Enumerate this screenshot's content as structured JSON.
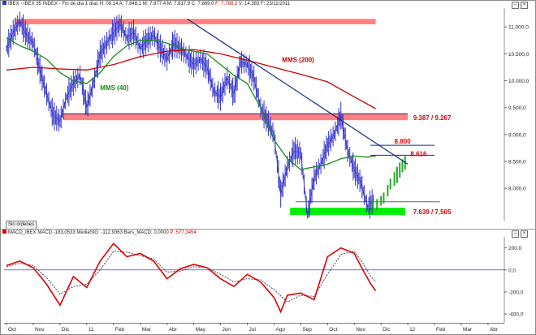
{
  "header": {
    "instrument": "IBEX - IBEX 35 INDEX - Fin de día 1 días",
    "ohlc": "H: 09.14  A: 7.848,1  M: 7.877,4  M: 7.817,9  C: 7.869,0",
    "change": "F: 7.798,2",
    "extra": "V: 14.383  F: 23/11/2011"
  },
  "macd_header": {
    "name": "MACD_IBEX MACD",
    "macd_value": "-183,0533",
    "signal": "MediaSIG: -112,9363",
    "zero": "Bars_MACD: 0,0000",
    "price": "P: 577,3454"
  },
  "badge": "Sin órdenes",
  "colors": {
    "price": "#3333cc",
    "mms40": "#1a8a1a",
    "mms200": "#cc0000",
    "resistance_band": "#ff8080",
    "support_band": "#00ee00",
    "trendline": "#1a2a80",
    "macd": "#dd0000",
    "signal": "#404060",
    "upcandles": "#22aa22"
  },
  "icons": [
    "minimize-icon",
    "close-icon"
  ],
  "chart_data": [
    {
      "type": "line",
      "panel": "price",
      "y_axis_ticks": [
        "11.000,0",
        "10.500,0",
        "10.000,0",
        "9.500,0",
        "9.000,0",
        "8.500,0",
        "8.000,0"
      ],
      "y_tick_values": [
        11000,
        10500,
        10000,
        9500,
        9000,
        8500,
        8000
      ],
      "ylim": [
        7400,
        11350
      ],
      "x_axis_ticks": [
        "Oct",
        "Nov",
        "Dic",
        "11",
        "Feb",
        "Mar",
        "Abr",
        "May",
        "Jun",
        "Jul",
        "Ago",
        "Sep",
        "Oct",
        "Nov",
        "Dic",
        "12",
        "Feb",
        "Mar",
        "Abr"
      ],
      "x_months": [
        0,
        1,
        2,
        3,
        4,
        5,
        6,
        7,
        8,
        9,
        10,
        11,
        12,
        13,
        14,
        15,
        16,
        17,
        18
      ],
      "series": [
        {
          "name": "IBEX",
          "x": [
            0.0,
            0.25,
            0.5,
            0.75,
            1.0,
            1.25,
            1.5,
            1.75,
            2.0,
            2.25,
            2.5,
            2.75,
            3.0,
            3.25,
            3.5,
            3.75,
            4.0,
            4.25,
            4.5,
            4.75,
            5.0,
            5.25,
            5.5,
            5.75,
            6.0,
            6.25,
            6.5,
            6.75,
            7.0,
            7.25,
            7.5,
            7.75,
            8.0,
            8.25,
            8.5,
            8.75,
            9.0,
            9.25,
            9.5,
            9.75,
            10.0,
            10.25,
            10.5,
            10.75,
            11.0,
            11.25,
            11.5,
            11.75,
            12.0,
            12.25,
            12.5,
            12.75,
            13.0,
            13.25,
            13.5,
            13.75
          ],
          "values": [
            10600,
            10900,
            11100,
            10850,
            10700,
            10200,
            9750,
            9350,
            9250,
            9700,
            9950,
            10100,
            9500,
            9950,
            10500,
            10700,
            10900,
            11050,
            10800,
            10900,
            10600,
            10750,
            10850,
            10600,
            10400,
            10700,
            10600,
            10450,
            10300,
            10400,
            10250,
            9800,
            9700,
            10050,
            9750,
            10350,
            10300,
            10050,
            9500,
            9250,
            9000,
            7900,
            8400,
            8700,
            8650,
            7500,
            8200,
            8450,
            8800,
            9000,
            9350,
            8700,
            8350,
            8100,
            7650,
            7800
          ]
        },
        {
          "name": "MMS (40)",
          "x": [
            0.0,
            0.5,
            1.0,
            1.5,
            2.0,
            2.5,
            3.0,
            3.5,
            4.0,
            4.5,
            5.0,
            5.5,
            6.0,
            6.5,
            7.0,
            7.5,
            8.0,
            8.5,
            9.0,
            9.5,
            10.0,
            10.5,
            11.0,
            11.5,
            12.0,
            12.5,
            13.0,
            13.5,
            13.8
          ],
          "values": [
            10800,
            10650,
            10550,
            10400,
            10150,
            10000,
            9950,
            10150,
            10450,
            10650,
            10750,
            10750,
            10700,
            10600,
            10550,
            10500,
            10300,
            10100,
            9950,
            9500,
            8900,
            8550,
            8350,
            8400,
            8450,
            8550,
            8600,
            8580,
            8600
          ]
        },
        {
          "name": "MMS (200)",
          "x": [
            0.0,
            1.0,
            2.0,
            3.0,
            4.0,
            5.0,
            6.0,
            7.0,
            8.0,
            9.0,
            10.0,
            11.0,
            12.0,
            13.0,
            13.8
          ],
          "values": [
            10200,
            10250,
            10220,
            10200,
            10300,
            10450,
            10550,
            10580,
            10500,
            10380,
            10250,
            10120,
            9980,
            9700,
            9480
          ]
        }
      ],
      "upcandles": {
        "x": [
          13.7,
          13.85,
          14.0,
          14.1,
          14.25,
          14.35,
          14.5,
          14.6,
          14.7,
          14.8,
          14.9
        ],
        "low": [
          7560,
          7600,
          7680,
          7720,
          7850,
          7980,
          8050,
          8100,
          8200,
          8300,
          8350
        ],
        "high": [
          7780,
          7800,
          7860,
          7920,
          8060,
          8180,
          8300,
          8400,
          8480,
          8540,
          8600
        ]
      },
      "annotations": {
        "mms40_label": "MMS (40)",
        "mms200_label": "MMS (200)",
        "band1": "9.387 / 9.267",
        "band2": "7.639 / 7.505",
        "level1": "8.800",
        "level2": "8.616"
      },
      "levels": {
        "top_band": [
          11050,
          11150
        ],
        "mid_band": [
          9267,
          9387
        ],
        "low_band": [
          7505,
          7639
        ],
        "line_8800": 8800,
        "line_8616": 8616,
        "line_low": 7750,
        "trendline": {
          "x": [
            6.75,
            15.0
          ],
          "values": [
            11150,
            8450
          ]
        }
      }
    },
    {
      "type": "line",
      "panel": "macd",
      "y_axis_ticks": [
        "200,0",
        "0,0",
        "-200,0",
        "-400,0"
      ],
      "y_tick_values": [
        200,
        0,
        -200,
        -400
      ],
      "ylim": [
        -480,
        300
      ],
      "series": [
        {
          "name": "MACD",
          "x": [
            0.0,
            0.5,
            1.0,
            1.5,
            2.0,
            2.5,
            3.0,
            3.5,
            4.0,
            4.5,
            5.0,
            5.5,
            6.0,
            6.5,
            7.0,
            7.5,
            8.0,
            8.5,
            9.0,
            9.5,
            10.0,
            10.25,
            10.5,
            11.0,
            11.5,
            12.0,
            12.5,
            13.0,
            13.3,
            13.6,
            13.8
          ],
          "values": [
            40,
            80,
            20,
            -130,
            -320,
            -60,
            -160,
            80,
            240,
            120,
            150,
            80,
            -80,
            10,
            50,
            20,
            -80,
            -150,
            -40,
            -110,
            -250,
            -380,
            -230,
            -210,
            -270,
            120,
            200,
            150,
            10,
            -120,
            -190
          ]
        },
        {
          "name": "Signal",
          "x": [
            0.0,
            0.5,
            1.0,
            1.5,
            2.0,
            2.5,
            3.0,
            3.5,
            4.0,
            4.5,
            5.0,
            5.5,
            6.0,
            6.5,
            7.0,
            7.5,
            8.0,
            8.5,
            9.0,
            9.5,
            10.0,
            10.5,
            11.0,
            11.5,
            12.0,
            12.5,
            13.0,
            13.3,
            13.6,
            13.8
          ],
          "values": [
            30,
            60,
            40,
            -70,
            -220,
            -150,
            -130,
            0,
            170,
            160,
            130,
            100,
            -20,
            -10,
            30,
            20,
            -40,
            -110,
            -80,
            -90,
            -180,
            -290,
            -230,
            -240,
            -40,
            140,
            170,
            70,
            -50,
            -110
          ]
        }
      ]
    }
  ]
}
